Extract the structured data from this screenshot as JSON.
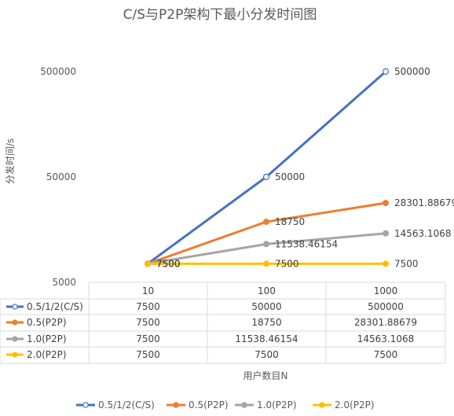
{
  "chart_data": {
    "type": "line",
    "title": "C/S与P2P架构下最小分发时间图",
    "xlabel": "用户数目N",
    "ylabel": "分发时间/s",
    "y_scale": "log",
    "ylim": [
      5000,
      500000
    ],
    "y_ticks": [
      "5000",
      "50000",
      "500000"
    ],
    "categories": [
      "10",
      "100",
      "1000"
    ],
    "grid": false,
    "legend_position": "bottom",
    "data_table": true,
    "series": [
      {
        "name": "0.5/1/2(C/S)",
        "values": [
          7500,
          50000,
          500000
        ],
        "value_labels": [
          "7500",
          "50000",
          "500000"
        ],
        "color": "#4472C4",
        "marker": "hollow-circle"
      },
      {
        "name": "0.5(P2P)",
        "values": [
          7500,
          18750,
          28301.88679
        ],
        "value_labels": [
          "7500",
          "18750",
          "28301.88679"
        ],
        "color": "#ED7D31",
        "marker": "filled-circle"
      },
      {
        "name": "1.0(P2P)",
        "values": [
          7500,
          11538.46154,
          14563.1068
        ],
        "value_labels": [
          "7500",
          "11538.46154",
          "14563.1068"
        ],
        "color": "#A5A5A5",
        "marker": "filled-circle"
      },
      {
        "name": "2.0(P2P)",
        "values": [
          7500,
          7500,
          7500
        ],
        "value_labels": [
          "7500",
          "7500",
          "7500"
        ],
        "color": "#FFC000",
        "marker": "filled-circle"
      }
    ]
  }
}
